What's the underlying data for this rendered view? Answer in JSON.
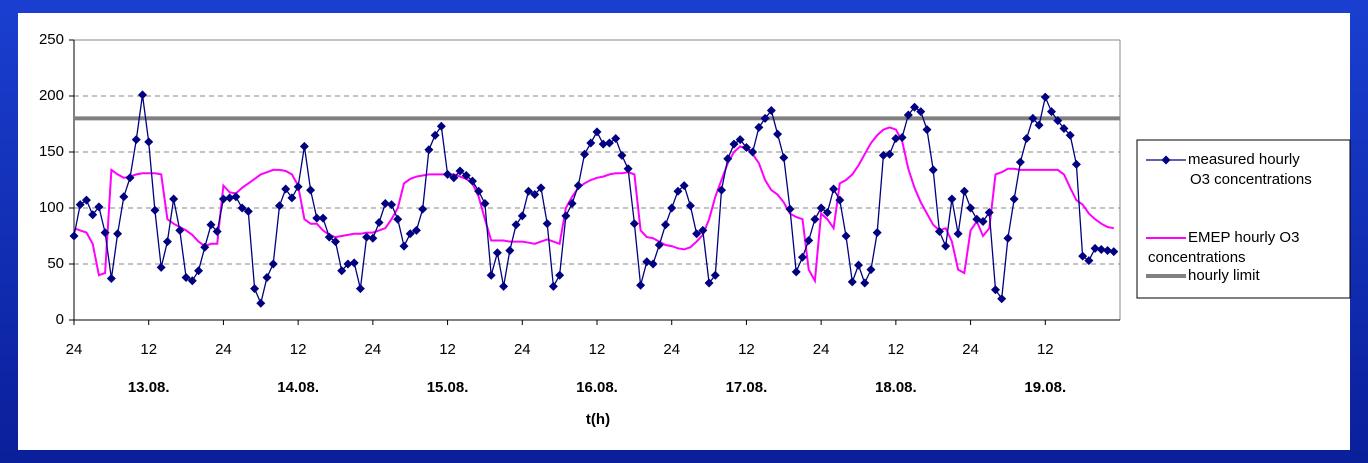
{
  "chart_data": {
    "type": "line",
    "xlabel": "t(h)",
    "x": [
      0,
      1,
      2,
      3,
      4,
      5,
      6,
      7,
      8,
      9,
      10,
      11,
      12,
      13,
      14,
      15,
      16,
      17,
      18,
      19,
      20,
      21,
      22,
      23,
      24,
      25,
      26,
      27,
      28,
      29,
      30,
      31,
      32,
      33,
      34,
      35,
      36,
      37,
      38,
      39,
      40,
      41,
      42,
      43,
      44,
      45,
      46,
      47,
      48,
      49,
      50,
      51,
      52,
      53,
      54,
      55,
      56,
      57,
      58,
      59,
      60,
      61,
      62,
      63,
      64,
      65,
      66,
      67,
      68,
      69,
      70,
      71,
      72,
      73,
      74,
      75,
      76,
      77,
      78,
      79,
      80,
      81,
      82,
      83,
      84,
      85,
      86,
      87,
      88,
      89,
      90,
      91,
      92,
      93,
      94,
      95,
      96,
      97,
      98,
      99,
      100,
      101,
      102,
      103,
      104,
      105,
      106,
      107,
      108,
      109,
      110,
      111,
      112,
      113,
      114,
      115,
      116,
      117,
      118,
      119,
      120,
      121,
      122,
      123,
      124,
      125,
      126,
      127,
      128,
      129,
      130,
      131,
      132,
      133,
      134,
      135,
      136,
      137,
      138,
      139,
      140,
      141,
      142,
      143,
      144,
      145,
      146,
      147,
      148,
      149,
      150,
      151,
      152,
      153,
      154,
      155,
      156,
      157,
      158,
      159,
      160,
      161,
      162,
      163,
      164,
      165,
      166,
      167
    ],
    "series": [
      {
        "name": "measured hourly O3 concentrations",
        "color": "#000080",
        "marker": "diamond",
        "values": [
          75,
          103,
          107,
          94,
          101,
          78,
          37,
          77,
          110,
          127,
          161,
          201,
          159,
          98,
          47,
          70,
          108,
          80,
          38,
          35,
          44,
          65,
          85,
          79,
          108,
          109,
          110,
          100,
          97,
          28,
          15,
          38,
          50,
          102,
          117,
          109,
          119,
          155,
          116,
          91,
          91,
          74,
          70,
          44,
          50,
          51,
          28,
          74,
          73,
          87,
          104,
          103,
          90,
          66,
          77,
          80,
          99,
          152,
          165,
          173,
          130,
          127,
          133,
          129,
          124,
          115,
          104,
          40,
          60,
          30,
          62,
          85,
          93,
          115,
          112,
          118,
          86,
          30,
          40,
          93,
          104,
          120,
          148,
          158,
          168,
          157,
          158,
          162,
          147,
          135,
          86,
          31,
          52,
          50,
          67,
          85,
          100,
          115,
          120,
          102,
          77,
          80,
          33,
          40,
          116,
          144,
          157,
          161,
          154,
          150,
          172,
          180,
          187,
          166,
          145,
          99,
          43,
          56,
          71,
          90,
          100,
          96,
          117,
          107,
          75,
          34,
          49,
          33,
          45,
          78,
          147,
          148,
          162,
          163,
          183,
          190,
          186,
          170,
          134,
          79,
          66,
          108,
          77,
          115,
          100,
          90,
          88,
          96,
          27,
          19,
          73,
          108,
          141,
          162,
          180,
          174,
          199,
          186,
          178,
          171,
          165,
          139,
          57,
          53,
          64,
          63,
          62,
          61
        ]
      },
      {
        "name": "EMEP hourly O3 concentrations",
        "color": "#ff00ff",
        "values": [
          82,
          80,
          78,
          68,
          40,
          42,
          134,
          130,
          127,
          128,
          130,
          131,
          131,
          131,
          130,
          90,
          86,
          83,
          80,
          76,
          70,
          66,
          68,
          68,
          120,
          114,
          113,
          118,
          122,
          126,
          130,
          132,
          134,
          134,
          133,
          130,
          120,
          90,
          86,
          86,
          80,
          76,
          74,
          75,
          76,
          77,
          77,
          78,
          78,
          80,
          82,
          90,
          100,
          122,
          126,
          128,
          129,
          130,
          130,
          130,
          130,
          130,
          128,
          126,
          122,
          110,
          90,
          71,
          71,
          71,
          70,
          70,
          70,
          69,
          68,
          70,
          72,
          70,
          68,
          100,
          110,
          118,
          122,
          125,
          127,
          128,
          130,
          131,
          131,
          132,
          130,
          80,
          74,
          73,
          70,
          67,
          66,
          64,
          63,
          65,
          70,
          76,
          90,
          110,
          125,
          140,
          150,
          155,
          153,
          148,
          140,
          125,
          116,
          112,
          105,
          95,
          92,
          90,
          45,
          35,
          95,
          90,
          82,
          122,
          125,
          130,
          138,
          148,
          158,
          165,
          170,
          172,
          170,
          160,
          135,
          118,
          105,
          95,
          85,
          80,
          82,
          70,
          45,
          42,
          80,
          88,
          75,
          82,
          130,
          132,
          135,
          135,
          134,
          134,
          134,
          134,
          134,
          134,
          134,
          130,
          118,
          107,
          103,
          95,
          90,
          86,
          83,
          82
        ]
      },
      {
        "name": "hourly limit",
        "color": "#808080",
        "x": [
          0,
          168
        ],
        "values": [
          180,
          180
        ]
      }
    ],
    "xlim": [
      0,
      168
    ],
    "xticks": [
      {
        "value": 0,
        "label": "24"
      },
      {
        "value": 12,
        "label": "12"
      },
      {
        "value": 24,
        "label": "24"
      },
      {
        "value": 36,
        "label": "12"
      },
      {
        "value": 48,
        "label": "24"
      },
      {
        "value": 60,
        "label": "12"
      },
      {
        "value": 72,
        "label": "24"
      },
      {
        "value": 84,
        "label": "12"
      },
      {
        "value": 96,
        "label": "24"
      },
      {
        "value": 108,
        "label": "12"
      },
      {
        "value": 120,
        "label": "24"
      },
      {
        "value": 132,
        "label": "12"
      },
      {
        "value": 144,
        "label": "24"
      },
      {
        "value": 156,
        "label": "12"
      }
    ],
    "day_labels": [
      {
        "value": 12,
        "label": "13.08."
      },
      {
        "value": 36,
        "label": "14.08."
      },
      {
        "value": 60,
        "label": "15.08."
      },
      {
        "value": 84,
        "label": "16.08."
      },
      {
        "value": 108,
        "label": "17.08."
      },
      {
        "value": 132,
        "label": "18.08."
      },
      {
        "value": 156,
        "label": "19.08."
      }
    ],
    "ylim": [
      0,
      250
    ],
    "yticks": [
      0,
      50,
      100,
      150,
      200,
      250
    ],
    "grid": true,
    "legend": "right"
  }
}
